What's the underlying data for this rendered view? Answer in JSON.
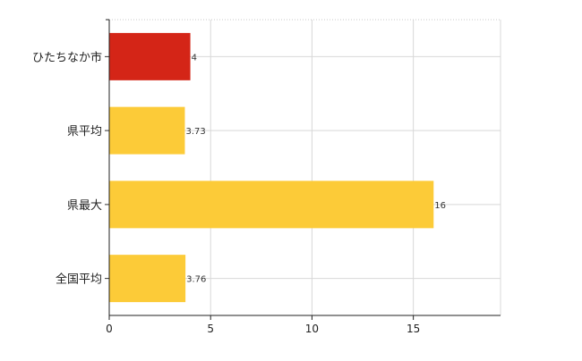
{
  "chart_data": {
    "type": "bar",
    "orientation": "horizontal",
    "categories": [
      "ひたちなか市",
      "県平均",
      "県最大",
      "全国平均"
    ],
    "values": [
      4,
      3.73,
      16,
      3.76
    ],
    "value_labels": [
      "4",
      "3.73",
      "16",
      "3.76"
    ],
    "bar_colors": [
      "#d42517",
      "#fccb38",
      "#fccb38",
      "#fccb38"
    ],
    "title": "",
    "xlabel": "",
    "ylabel": "",
    "xlim": [
      0,
      19.3
    ],
    "xticks": [
      0,
      5,
      10,
      15
    ],
    "xtick_labels": [
      "0",
      "5",
      "10",
      "15"
    ],
    "grid": true,
    "legend": "none"
  }
}
